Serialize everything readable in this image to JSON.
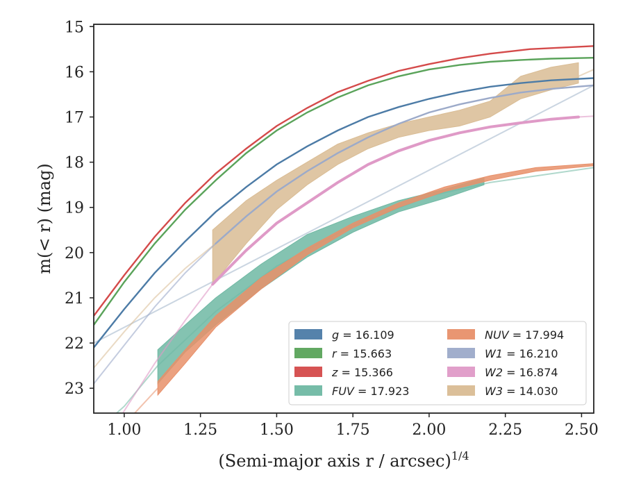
{
  "chart_data": {
    "type": "line",
    "title": "",
    "xlabel": "(Semi-major axis r / arcsec)",
    "xlabel_sup": "1/4",
    "ylabel": "m(< r) (mag)",
    "xlim": [
      0.9,
      2.54
    ],
    "ylim": [
      23.55,
      14.95
    ],
    "y_inverted": true,
    "grid": false,
    "legend_position": "lower-right",
    "x_ticks": [
      1.0,
      1.25,
      1.5,
      1.75,
      2.0,
      2.25,
      2.5
    ],
    "x_tick_labels": [
      "1.00",
      "1.25",
      "1.50",
      "1.75",
      "2.00",
      "2.25",
      "2.50"
    ],
    "y_ticks": [
      15,
      16,
      17,
      18,
      19,
      20,
      21,
      22,
      23
    ],
    "y_tick_labels": [
      "15",
      "16",
      "17",
      "18",
      "19",
      "20",
      "21",
      "22",
      "23"
    ],
    "series": [
      {
        "name": "g = 16.109",
        "label_var": "g",
        "label_value": "16.109",
        "color": "#4c7ba6",
        "x": [
          0.9,
          1.0,
          1.1,
          1.2,
          1.3,
          1.4,
          1.5,
          1.6,
          1.7,
          1.8,
          1.9,
          2.0,
          2.1,
          2.2,
          2.3,
          2.4,
          2.54
        ],
        "y": [
          22.1,
          21.25,
          20.45,
          19.75,
          19.1,
          18.55,
          18.05,
          17.65,
          17.3,
          17.0,
          16.78,
          16.6,
          16.45,
          16.33,
          16.25,
          16.19,
          16.14
        ],
        "faint_x": [
          0.9,
          2.54
        ],
        "faint_y": [
          22.0,
          16.3
        ],
        "faint_color": "#9fb3c8"
      },
      {
        "name": "r = 15.663",
        "label_var": "r",
        "label_value": "15.663",
        "color": "#5aa35a",
        "x": [
          0.9,
          1.0,
          1.1,
          1.2,
          1.3,
          1.4,
          1.5,
          1.6,
          1.7,
          1.8,
          1.9,
          2.0,
          2.1,
          2.2,
          2.3,
          2.4,
          2.54
        ],
        "y": [
          21.6,
          20.65,
          19.8,
          19.05,
          18.4,
          17.8,
          17.3,
          16.9,
          16.57,
          16.3,
          16.1,
          15.95,
          15.85,
          15.78,
          15.74,
          15.71,
          15.69
        ]
      },
      {
        "name": "z = 15.366",
        "label_var": "z",
        "label_value": "15.366",
        "color": "#d44a4a",
        "x": [
          0.9,
          1.0,
          1.1,
          1.2,
          1.3,
          1.4,
          1.5,
          1.6,
          1.7,
          1.8,
          1.9,
          2.0,
          2.1,
          2.2,
          2.33,
          2.54
        ],
        "y": [
          21.4,
          20.5,
          19.65,
          18.9,
          18.25,
          17.7,
          17.2,
          16.8,
          16.45,
          16.2,
          15.98,
          15.83,
          15.7,
          15.6,
          15.5,
          15.43
        ]
      },
      {
        "name": "FUV = 17.923",
        "label_var": "FUV",
        "label_value": "17.923",
        "color": "#6fb8a3",
        "band_x": [
          1.11,
          1.2,
          1.3,
          1.45,
          1.6,
          1.75,
          1.9,
          2.05,
          2.18
        ],
        "band_upper": [
          22.15,
          21.6,
          21.0,
          20.25,
          19.6,
          19.2,
          18.85,
          18.6,
          18.35
        ],
        "band_lower": [
          22.9,
          22.2,
          21.6,
          20.8,
          20.1,
          19.55,
          19.1,
          18.8,
          18.5
        ],
        "faint_x": [
          0.9,
          1.0,
          1.11,
          1.3,
          1.5,
          1.75,
          2.0,
          2.2,
          2.54
        ],
        "faint_y": [
          24.0,
          23.4,
          22.5,
          21.3,
          20.3,
          19.4,
          18.75,
          18.45,
          18.12
        ]
      },
      {
        "name": "NUV = 17.994",
        "label_var": "NUV",
        "label_value": "17.994",
        "color": "#e8906a",
        "band_x": [
          1.11,
          1.2,
          1.3,
          1.45,
          1.6,
          1.75,
          1.9,
          2.05,
          2.2,
          2.35,
          2.54
        ],
        "band_upper": [
          22.85,
          22.15,
          21.4,
          20.55,
          19.9,
          19.35,
          18.9,
          18.55,
          18.3,
          18.12,
          18.03
        ],
        "band_lower": [
          23.15,
          22.45,
          21.65,
          20.8,
          20.05,
          19.45,
          19.0,
          18.65,
          18.4,
          18.2,
          18.08
        ],
        "faint_x": [
          0.9,
          1.0,
          1.11
        ],
        "faint_y": [
          24.5,
          23.8,
          23.0
        ]
      },
      {
        "name": "W1 = 16.210",
        "label_var": "W1",
        "label_value": "16.210",
        "color": "#9caac9",
        "x": [
          0.9,
          1.0,
          1.1,
          1.2,
          1.3,
          1.4,
          1.5,
          1.6,
          1.7,
          1.8,
          1.9,
          2.0,
          2.1,
          2.2,
          2.3,
          2.4,
          2.54
        ],
        "y": [
          22.9,
          22.05,
          21.2,
          20.45,
          19.8,
          19.2,
          18.65,
          18.2,
          17.8,
          17.45,
          17.15,
          16.9,
          16.72,
          16.58,
          16.46,
          16.38,
          16.3
        ],
        "solid_from": 1.29
      },
      {
        "name": "W2 = 16.874",
        "label_var": "W2",
        "label_value": "16.874",
        "color": "#df9ac7",
        "x": [
          0.9,
          1.0,
          1.1,
          1.2,
          1.29,
          1.4,
          1.5,
          1.6,
          1.7,
          1.8,
          1.9,
          2.0,
          2.1,
          2.2,
          2.3,
          2.4,
          2.49,
          2.54
        ],
        "y": [
          24.8,
          23.5,
          22.45,
          21.5,
          20.7,
          19.95,
          19.35,
          18.9,
          18.45,
          18.05,
          17.75,
          17.52,
          17.35,
          17.22,
          17.13,
          17.05,
          17.0,
          16.98
        ],
        "solid_range": [
          1.29,
          2.49
        ]
      },
      {
        "name": "W3 = 14.030",
        "label_var": "W3",
        "label_value": "14.030",
        "color": "#d9bc94",
        "band_x": [
          1.29,
          1.4,
          1.5,
          1.6,
          1.7,
          1.8,
          1.9,
          2.0,
          2.1,
          2.2,
          2.3,
          2.4,
          2.49
        ],
        "band_upper": [
          19.5,
          18.85,
          18.4,
          18.0,
          17.6,
          17.35,
          17.15,
          17.0,
          16.85,
          16.65,
          16.1,
          15.9,
          15.8
        ],
        "band_lower": [
          20.7,
          19.8,
          19.05,
          18.5,
          18.05,
          17.7,
          17.45,
          17.3,
          17.2,
          17.0,
          16.6,
          16.4,
          16.25
        ],
        "faint_x": [
          0.9,
          1.0,
          1.1,
          1.2,
          1.29
        ],
        "faint_y": [
          22.55,
          21.75,
          21.0,
          20.35,
          19.85
        ],
        "faint_tail_x": [
          2.49,
          2.54
        ],
        "faint_tail_y": [
          16.1,
          15.95
        ]
      }
    ]
  }
}
